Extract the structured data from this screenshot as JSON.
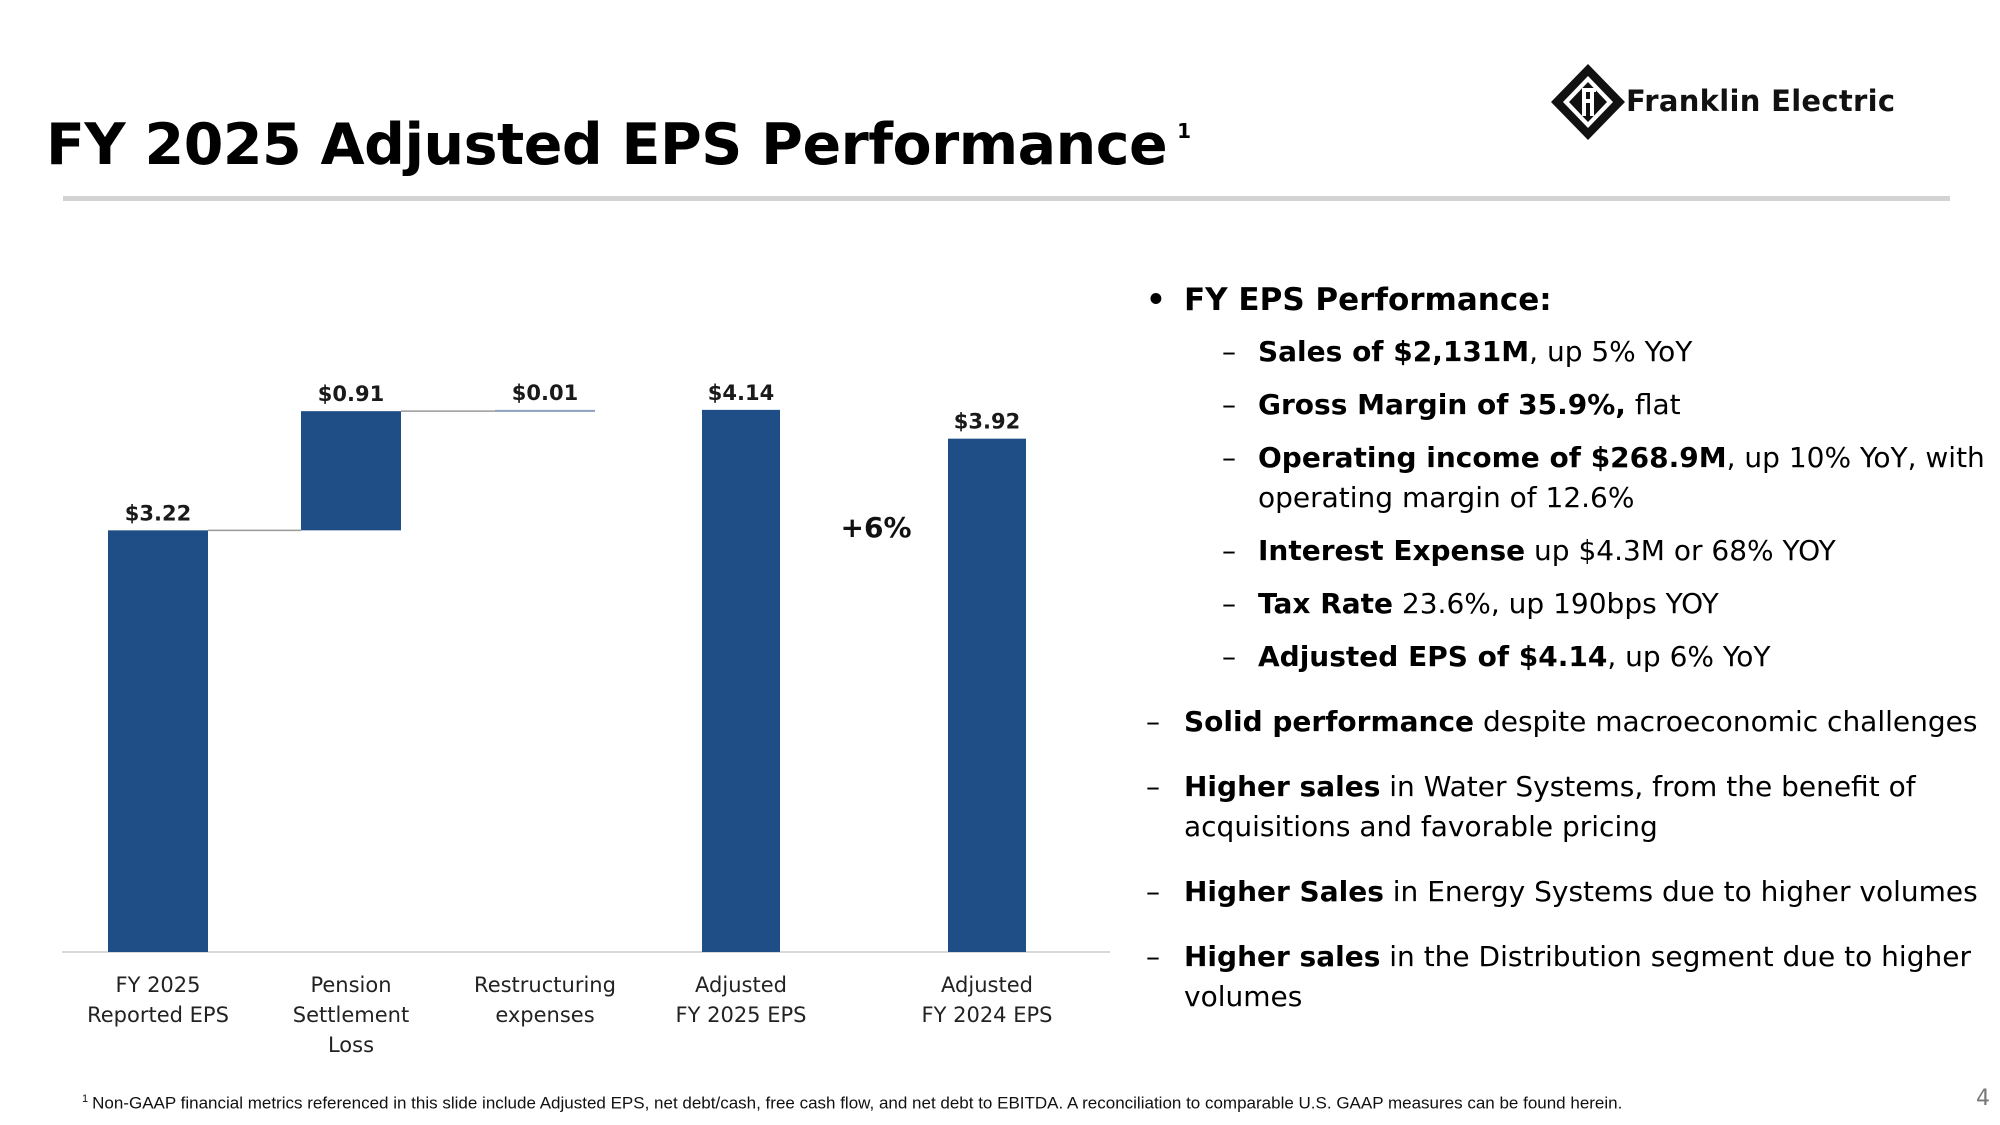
{
  "slide": {
    "title": "FY 2025 Adjusted EPS Performance",
    "title_footnote_marker": "1",
    "page_number": "4"
  },
  "logo": {
    "brand_name": "Franklin Electric"
  },
  "colors": {
    "bar": "#1f4e87",
    "rule": "#d3d3d3"
  },
  "chart_data": {
    "type": "bar",
    "subtype": "waterfall",
    "categories": [
      "FY 2025 Reported EPS",
      "Pension Settlement Loss",
      "Restructuring expenses",
      "Adjusted FY 2025 EPS",
      "Adjusted FY 2024 EPS"
    ],
    "category_lines": [
      [
        "FY 2025",
        "Reported EPS"
      ],
      [
        "Pension",
        "Settlement",
        "Loss"
      ],
      [
        "Restructuring",
        "expenses"
      ],
      [
        "Adjusted",
        "FY 2025 EPS"
      ],
      [
        "Adjusted",
        "FY 2024 EPS"
      ]
    ],
    "values": [
      3.22,
      0.91,
      0.01,
      4.14,
      3.92
    ],
    "bases": [
      0,
      3.22,
      4.13,
      0,
      0
    ],
    "value_labels": [
      "$3.22",
      "$0.91",
      "$0.01",
      "$4.14",
      "$3.92"
    ],
    "annotation": "+6%",
    "ylim": [
      0,
      4.2
    ],
    "title": "",
    "xlabel": "",
    "ylabel": ""
  },
  "bullets": {
    "heading": "FY EPS Performance:",
    "sub_items": [
      {
        "bold": "Sales of $2,131M",
        "rest": ", up 5% YoY"
      },
      {
        "bold": "Gross Margin of 35.9%,",
        "rest": " flat"
      },
      {
        "bold": "Operating income of $268.9M",
        "rest": ", up 10% YoY, with operating margin of 12.6%"
      },
      {
        "bold": "Interest Expense",
        "rest": " up $4.3M or 68% YOY"
      },
      {
        "bold": "Tax Rate",
        "rest": " 23.6%, up 190bps YOY"
      },
      {
        "bold": "Adjusted EPS of $4.14",
        "rest": ", up 6% YoY"
      }
    ],
    "main_items": [
      {
        "bold": "Solid performance",
        "rest": " despite macroeconomic challenges"
      },
      {
        "bold": "Higher sales",
        "rest": " in Water Systems, from the benefit of acquisitions and favorable pricing"
      },
      {
        "bold": "Higher Sales",
        "rest": " in Energy Systems due to higher volumes"
      },
      {
        "bold": "Higher sales",
        "rest": " in the Distribution segment due to higher volumes"
      }
    ]
  },
  "footnote": {
    "marker": "1",
    "text": "Non-GAAP financial metrics referenced in this slide include Adjusted EPS, net debt/cash, free cash flow, and net debt to EBITDA. A reconciliation to comparable U.S. GAAP measures can be found herein."
  }
}
